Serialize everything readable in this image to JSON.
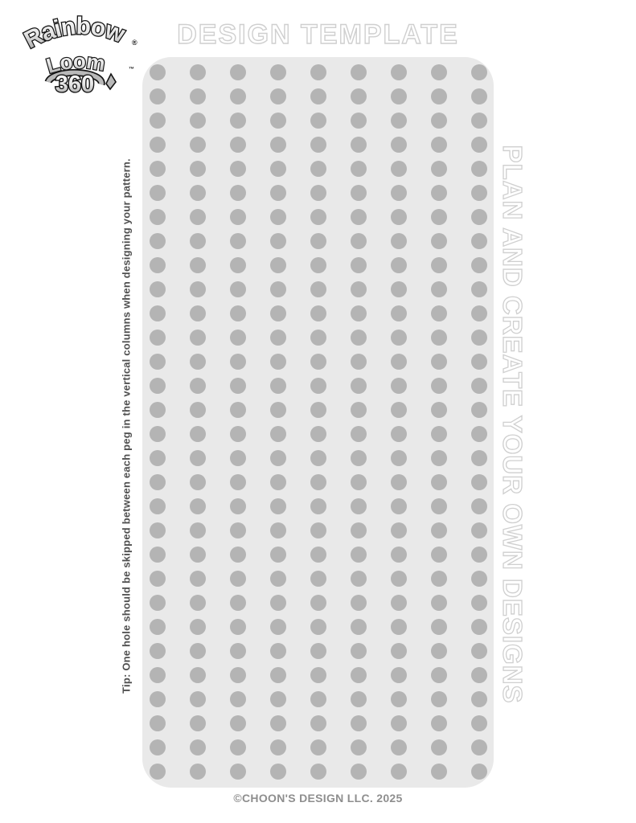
{
  "page": {
    "title": "DESIGN TEMPLATE",
    "footer": "©CHOON'S DESIGN LLC. 2025"
  },
  "logo": {
    "brand_line1": "Rainbow",
    "brand_line2": "Loom",
    "brand_line3": "360",
    "registered": "®",
    "trademark": "™"
  },
  "sidebar_tip": "Tip: One hole should be skipped between each peg in the vertical columns  when designing your pattern.",
  "right_slogan": "PLAN AND CREATE YOUR OWN DESIGNS",
  "grid": {
    "columns": 9,
    "rows": 30
  },
  "colors": {
    "board_bg": "#e9e9e9",
    "peg_dot": "#b4b4b4",
    "outline_text": "#cfcfcf",
    "tip_text": "#4f4f4f",
    "footer_text": "#8e8e8e"
  }
}
